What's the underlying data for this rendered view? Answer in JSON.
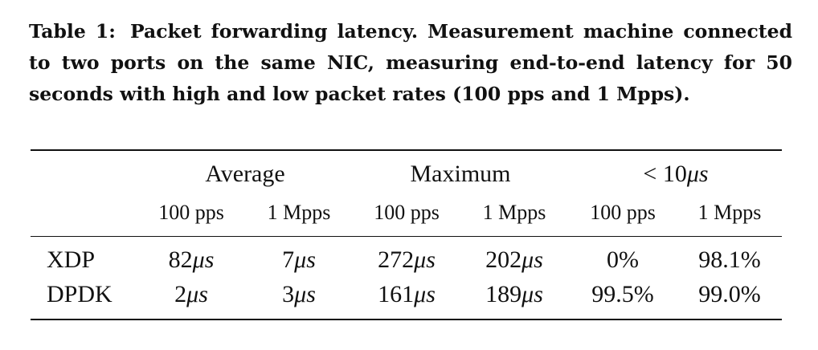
{
  "caption": {
    "label": "Table 1:",
    "text": "Packet forwarding latency. Measurement machine connected to two ports on the same NIC, measuring end-to-end latency for 50 seconds with high and low packet rates (100 pps and 1 Mpps)."
  },
  "table": {
    "groups": [
      "Average",
      "Maximum",
      "< 10μs"
    ],
    "subheaders": [
      "100 pps",
      "1 Mpps",
      "100 pps",
      "1 Mpps",
      "100 pps",
      "1 Mpps"
    ],
    "rows": [
      {
        "label": "XDP",
        "values": [
          "82μs",
          "7μs",
          "272μs",
          "202μs",
          "0%",
          "98.1%"
        ]
      },
      {
        "label": "DPDK",
        "values": [
          "2μs",
          "3μs",
          "161μs",
          "189μs",
          "99.5%",
          "99.0%"
        ]
      }
    ]
  }
}
